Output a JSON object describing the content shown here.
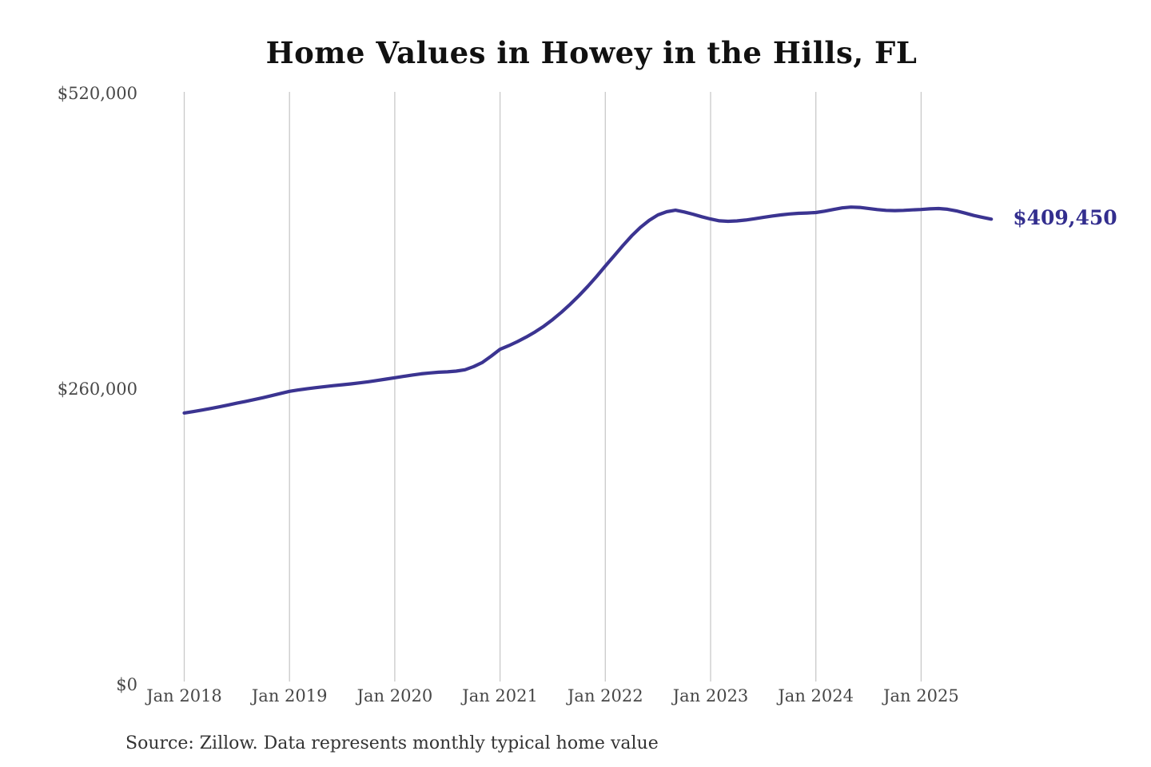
{
  "chart_data": {
    "type": "line",
    "title": "Home Values in Howey in the Hills, FL",
    "source_note": "Source: Zillow. Data represents monthly typical home value",
    "end_label": "$409,450",
    "end_value": 409450,
    "x_start": "2018-01",
    "x_end": "2025-09",
    "x_frequency": "monthly",
    "ylim": [
      0,
      520000
    ],
    "grid": "vertical-only",
    "legend": "none",
    "y_ticks": [
      {
        "label": "$520,000",
        "value": 520000
      },
      {
        "label": "$260,000",
        "value": 260000
      },
      {
        "label": "$0",
        "value": 0
      }
    ],
    "x_ticks": [
      "Jan 2018",
      "Jan 2019",
      "Jan 2020",
      "Jan 2021",
      "Jan 2022",
      "Jan 2023",
      "Jan 2024",
      "Jan 2025"
    ],
    "series": [
      {
        "name": "Monthly typical home value",
        "values": [
          239000,
          240200,
          241500,
          242900,
          244400,
          246000,
          247600,
          249200,
          250800,
          252500,
          254300,
          256200,
          258000,
          259200,
          260300,
          261300,
          262200,
          263000,
          263800,
          264600,
          265500,
          266500,
          267600,
          268800,
          270000,
          271200,
          272400,
          273400,
          274200,
          274800,
          275200,
          275800,
          277000,
          279800,
          283500,
          289000,
          295000,
          298200,
          301800,
          305800,
          310300,
          315400,
          321200,
          327600,
          334600,
          342200,
          350300,
          359000,
          368200,
          377200,
          386200,
          394700,
          402200,
          408400,
          413200,
          416000,
          417300,
          415800,
          413800,
          411600,
          409600,
          408000,
          407600,
          407900,
          408700,
          409800,
          411000,
          412200,
          413200,
          414000,
          414600,
          414900,
          415300,
          416500,
          418000,
          419400,
          420100,
          419800,
          418900,
          417900,
          417200,
          417000,
          417200,
          417600,
          418000,
          418500,
          418800,
          418200,
          416800,
          414800,
          412700,
          411000,
          409450
        ]
      }
    ]
  },
  "colors": {
    "line": "#3b3491",
    "grid": "#c9c9c9",
    "title": "#111111",
    "axis_label": "#474747",
    "end_label": "#332e8e",
    "source": "#333333",
    "background": "#ffffff"
  }
}
